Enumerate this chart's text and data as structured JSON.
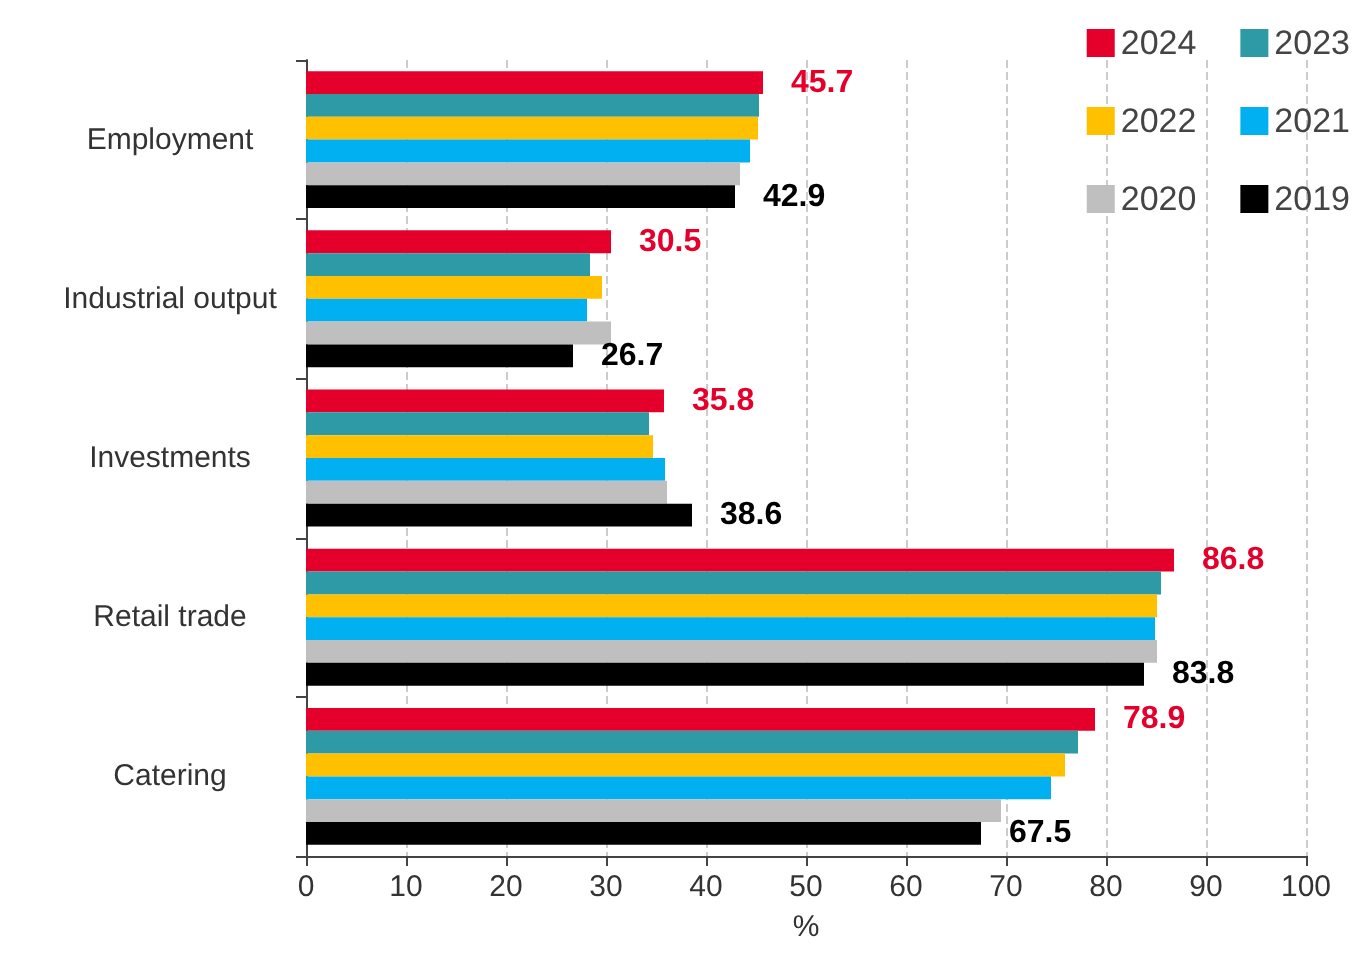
{
  "chart_data": {
    "type": "bar",
    "orientation": "horizontal",
    "xlabel": "%",
    "categories": [
      "Employment",
      "Industrial output",
      "Investments",
      "Retail trade",
      "Catering"
    ],
    "series": [
      {
        "name": "2024",
        "color": "#e4002b",
        "values": [
          45.7,
          30.5,
          35.8,
          86.8,
          78.9
        ],
        "value_labels": [
          "45.7",
          "30.5",
          "35.8",
          "86.8",
          "78.9"
        ]
      },
      {
        "name": "2023",
        "color": "#2e9aa6",
        "values": [
          45.3,
          28.4,
          34.3,
          85.5,
          77.2
        ]
      },
      {
        "name": "2022",
        "color": "#ffc000",
        "values": [
          45.2,
          29.6,
          34.7,
          85.1,
          75.9
        ]
      },
      {
        "name": "2021",
        "color": "#00b0f0",
        "values": [
          44.4,
          28.1,
          35.9,
          84.9,
          74.5
        ]
      },
      {
        "name": "2020",
        "color": "#bfbfbf",
        "values": [
          43.4,
          30.5,
          36.1,
          85.1,
          69.5
        ]
      },
      {
        "name": "2019",
        "color": "#000000",
        "values": [
          42.9,
          26.7,
          38.6,
          83.8,
          67.5
        ],
        "value_labels": [
          "42.9",
          "26.7",
          "38.6",
          "83.8",
          "67.5"
        ]
      }
    ],
    "xlim": [
      0,
      100
    ],
    "xticks": [
      0,
      10,
      20,
      30,
      40,
      50,
      60,
      70,
      80,
      90,
      100
    ],
    "grid": "x",
    "legend": "top right"
  }
}
